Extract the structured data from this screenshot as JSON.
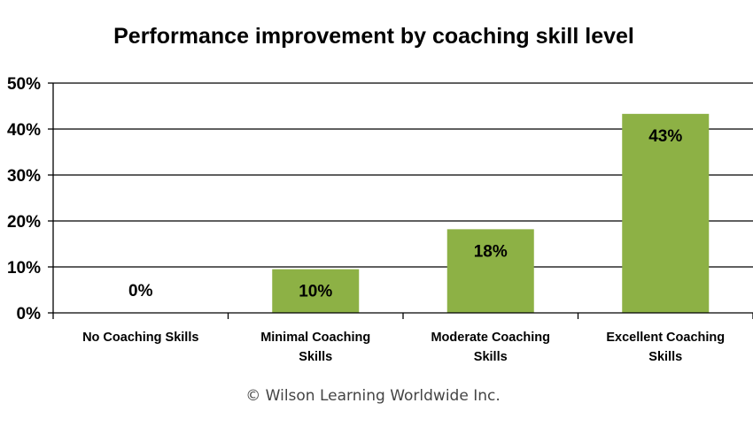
{
  "chart_data": {
    "type": "bar",
    "title": "Performance improvement by coaching skill level",
    "categories": [
      [
        "No Coaching Skills"
      ],
      [
        "Minimal Coaching",
        "Skills"
      ],
      [
        "Moderate Coaching",
        "Skills"
      ],
      [
        "Excellent Coaching",
        "Skills"
      ]
    ],
    "values": [
      0,
      9.5,
      18.2,
      43.3
    ],
    "data_labels": [
      "0%",
      "10%",
      "18%",
      "43%"
    ],
    "ylim": [
      0,
      50
    ],
    "yticks": [
      0,
      10,
      20,
      30,
      40,
      50
    ],
    "ytick_labels": [
      "0%",
      "10%",
      "20%",
      "30%",
      "40%",
      "50%"
    ],
    "xlabel": "",
    "ylabel": "",
    "grid": true,
    "bar_color": "#8db145",
    "grid_color": "#000000"
  },
  "footer": {
    "copyright": "© Wilson Learning Worldwide Inc."
  }
}
